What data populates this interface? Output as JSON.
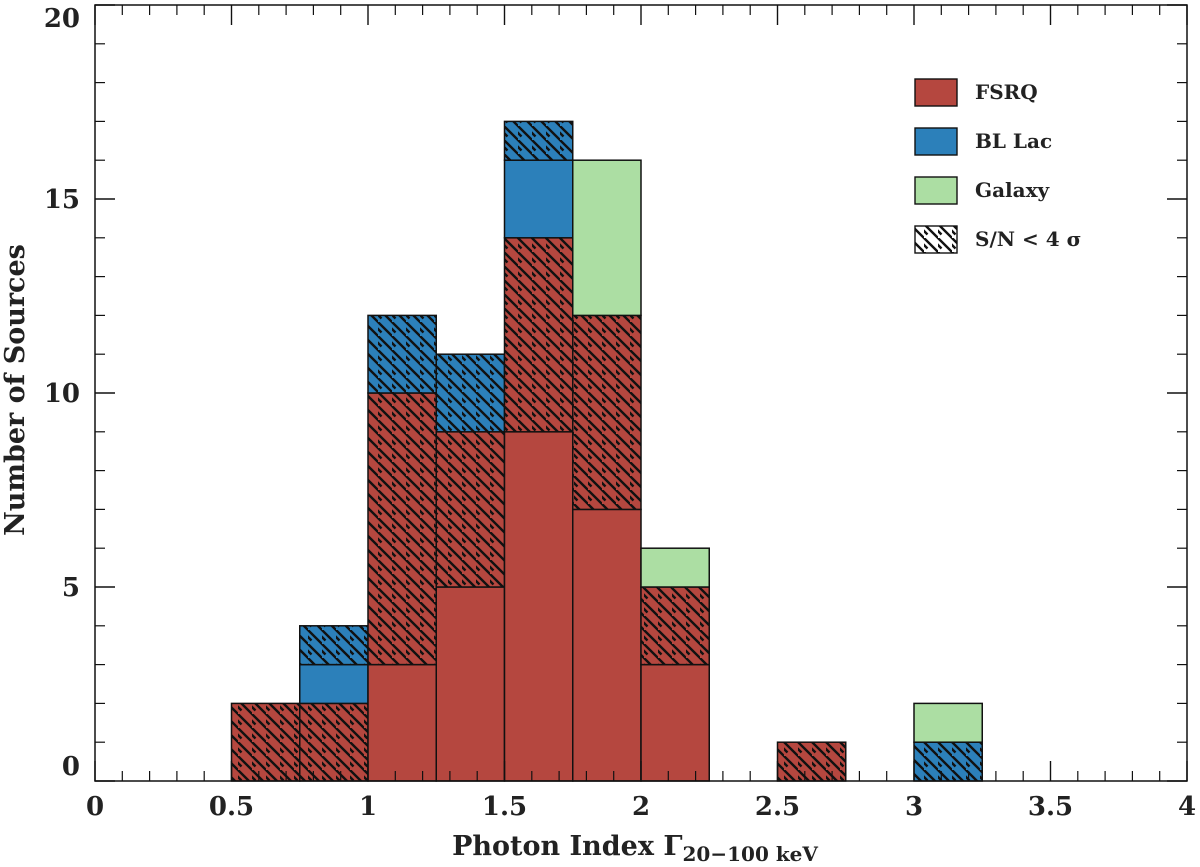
{
  "chart_data": {
    "type": "bar",
    "stacked": true,
    "title": "",
    "xlabel": "Photon Index Γ",
    "xlabel_subscript": "20−100 keV",
    "ylabel": "Number of Sources",
    "xlim": [
      0,
      4
    ],
    "ylim": [
      0,
      20
    ],
    "xticks": [
      "0",
      "0.5",
      "1",
      "1.5",
      "2",
      "2.5",
      "3",
      "3.5",
      "4"
    ],
    "yticks": [
      "0",
      "5",
      "10",
      "15",
      "20"
    ],
    "bin_edges": [
      0.5,
      0.75,
      1.0,
      1.25,
      1.5,
      1.75,
      2.0,
      2.25,
      2.5,
      2.75,
      3.0,
      3.25
    ],
    "series": [
      {
        "name": "FSRQ",
        "color": "#b5473f",
        "high_sn": [
          0,
          0,
          3,
          5,
          9,
          7,
          3,
          0,
          0,
          0,
          0
        ],
        "low_sn": [
          2,
          2,
          7,
          4,
          5,
          5,
          2,
          0,
          1,
          0,
          0
        ]
      },
      {
        "name": "BL Lac",
        "color": "#2c80ba",
        "high_sn": [
          0,
          1,
          0,
          0,
          2,
          0,
          0,
          0,
          0,
          0,
          0
        ],
        "low_sn": [
          0,
          1,
          2,
          2,
          1,
          0,
          0,
          0,
          0,
          0,
          1
        ]
      },
      {
        "name": "Galaxy",
        "color": "#acdea3",
        "high_sn": [
          0,
          0,
          0,
          0,
          0,
          4,
          1,
          0,
          0,
          0,
          1
        ],
        "low_sn": [
          0,
          0,
          0,
          0,
          0,
          0,
          0,
          0,
          0,
          0,
          0
        ]
      }
    ],
    "hatch_legend": "S/N < 4 σ",
    "legend_position": "top-right"
  }
}
